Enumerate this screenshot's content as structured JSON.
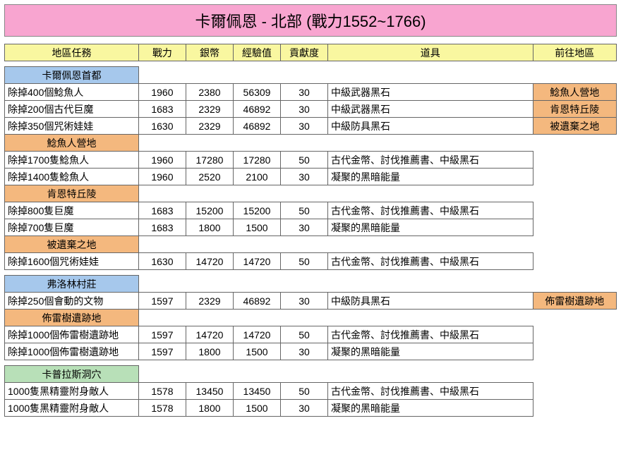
{
  "title": "卡爾佩恩 - 北部 (戰力1552~1766)",
  "title_bg": "#f8a5d0",
  "header_bg": "#f9f7a0",
  "section_colors": {
    "blue": "#a6c8ec",
    "orange": "#f4b87e",
    "green": "#b8e0b8"
  },
  "dest_bg": "#f4b87e",
  "headers": {
    "task": "地區任務",
    "power": "戰力",
    "silver": "銀幣",
    "exp": "經驗值",
    "contrib": "貢獻度",
    "item": "道具",
    "dest": "前往地區"
  },
  "groups": [
    {
      "sections": [
        {
          "name": "卡爾佩恩首都",
          "color": "blue",
          "rows": [
            {
              "task": "除掉400個鯰魚人",
              "power": 1960,
              "silver": 2380,
              "exp": 56309,
              "contrib": 30,
              "item": "中級武器黑石",
              "dest": "鯰魚人營地"
            },
            {
              "task": "除掉200個古代巨魔",
              "power": 1683,
              "silver": 2329,
              "exp": 46892,
              "contrib": 30,
              "item": "中級武器黑石",
              "dest": "肯恩特丘陵"
            },
            {
              "task": "除掉350個咒術娃娃",
              "power": 1630,
              "silver": 2329,
              "exp": 46892,
              "contrib": 30,
              "item": "中級防具黑石",
              "dest": "被遺棄之地"
            }
          ]
        },
        {
          "name": "鯰魚人營地",
          "color": "orange",
          "rows": [
            {
              "task": "除掉1700隻鯰魚人",
              "power": 1960,
              "silver": 17280,
              "exp": 17280,
              "contrib": 50,
              "item": "古代金幣、討伐推薦書、中級黑石"
            },
            {
              "task": "除掉1400隻鯰魚人",
              "power": 1960,
              "silver": 2520,
              "exp": 2100,
              "contrib": 30,
              "item": "凝聚的黑暗能量"
            }
          ]
        },
        {
          "name": "肯恩特丘陵",
          "color": "orange",
          "rows": [
            {
              "task": "除掉800隻巨魔",
              "power": 1683,
              "silver": 15200,
              "exp": 15200,
              "contrib": 50,
              "item": "古代金幣、討伐推薦書、中級黑石"
            },
            {
              "task": "除掉700隻巨魔",
              "power": 1683,
              "silver": 1800,
              "exp": 1500,
              "contrib": 30,
              "item": "凝聚的黑暗能量"
            }
          ]
        },
        {
          "name": "被遺棄之地",
          "color": "orange",
          "rows": [
            {
              "task": "除掉1600個咒術娃娃",
              "power": 1630,
              "silver": 14720,
              "exp": 14720,
              "contrib": 50,
              "item": "古代金幣、討伐推薦書、中級黑石"
            }
          ]
        }
      ]
    },
    {
      "sections": [
        {
          "name": "弗洛林村莊",
          "color": "blue",
          "rows": [
            {
              "task": "除掉250個會動的文物",
              "power": 1597,
              "silver": 2329,
              "exp": 46892,
              "contrib": 30,
              "item": "中級防具黑石",
              "dest": "佈雷樹遺跡地"
            }
          ]
        },
        {
          "name": "佈雷樹遺跡地",
          "color": "orange",
          "rows": [
            {
              "task": "除掉1000個佈雷樹遺跡地",
              "power": 1597,
              "silver": 14720,
              "exp": 14720,
              "contrib": 50,
              "item": "古代金幣、討伐推薦書、中級黑石"
            },
            {
              "task": "除掉1000個佈雷樹遺跡地",
              "power": 1597,
              "silver": 1800,
              "exp": 1500,
              "contrib": 30,
              "item": "凝聚的黑暗能量"
            }
          ]
        }
      ]
    },
    {
      "sections": [
        {
          "name": "卡普拉斯洞穴",
          "color": "green",
          "rows": [
            {
              "task": "1000隻黑精靈附身敵人",
              "power": 1578,
              "silver": 13450,
              "exp": 13450,
              "contrib": 50,
              "item": "古代金幣、討伐推薦書、中級黑石"
            },
            {
              "task": "1000隻黑精靈附身敵人",
              "power": 1578,
              "silver": 1800,
              "exp": 1500,
              "contrib": 30,
              "item": "凝聚的黑暗能量"
            }
          ]
        }
      ]
    }
  ]
}
